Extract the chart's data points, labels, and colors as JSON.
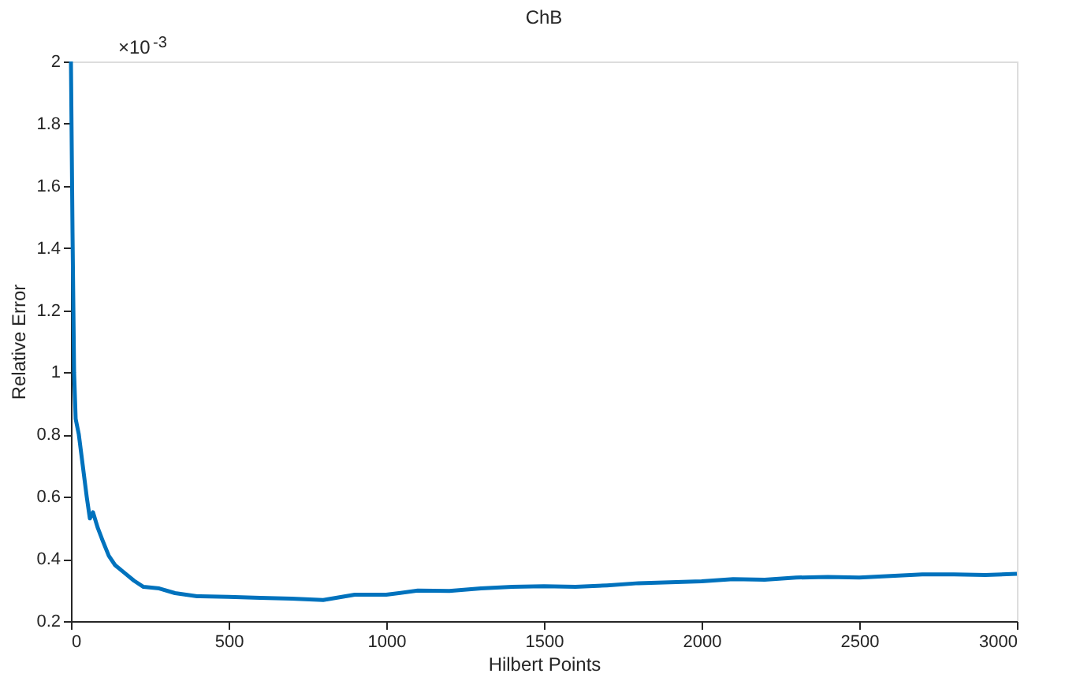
{
  "chart_data": {
    "type": "line",
    "title": "ChB",
    "xlabel": "Hilbert Points",
    "ylabel": "Relative Error",
    "annotations": [
      "×10$^{-3}$"
    ],
    "x": [
      0,
      5,
      10,
      15,
      25,
      35,
      50,
      60,
      70,
      85,
      100,
      120,
      140,
      170,
      200,
      230,
      280,
      330,
      400,
      500,
      600,
      700,
      800,
      900,
      1000,
      1100,
      1200,
      1300,
      1400,
      1500,
      1600,
      1700,
      1800,
      1900,
      2000,
      2100,
      2200,
      2300,
      2400,
      2500,
      2600,
      2700,
      2800,
      2900,
      3000
    ],
    "series": [
      {
        "color": "#0072bd",
        "values": [
          2.0,
          1.45,
          1.0,
          0.85,
          0.8,
          0.72,
          0.6,
          0.53,
          0.55,
          0.5,
          0.46,
          0.41,
          0.38,
          0.355,
          0.33,
          0.31,
          0.305,
          0.29,
          0.28,
          0.278,
          0.275,
          0.272,
          0.268,
          0.285,
          0.285,
          0.298,
          0.297,
          0.305,
          0.31,
          0.312,
          0.31,
          0.315,
          0.322,
          0.325,
          0.328,
          0.335,
          0.333,
          0.34,
          0.342,
          0.34,
          0.345,
          0.35,
          0.35,
          0.348,
          0.352
        ]
      }
    ],
    "xlim": [
      0,
      3000
    ],
    "xticks": [
      0,
      500,
      1000,
      1500,
      2000,
      2500,
      3000
    ],
    "ylim": [
      0.2,
      2
    ],
    "yticks": [
      0.2,
      0.4,
      0.6,
      0.8,
      1,
      1.2,
      1.4,
      1.6,
      1.8,
      2
    ],
    "grid": false,
    "legend": false
  }
}
